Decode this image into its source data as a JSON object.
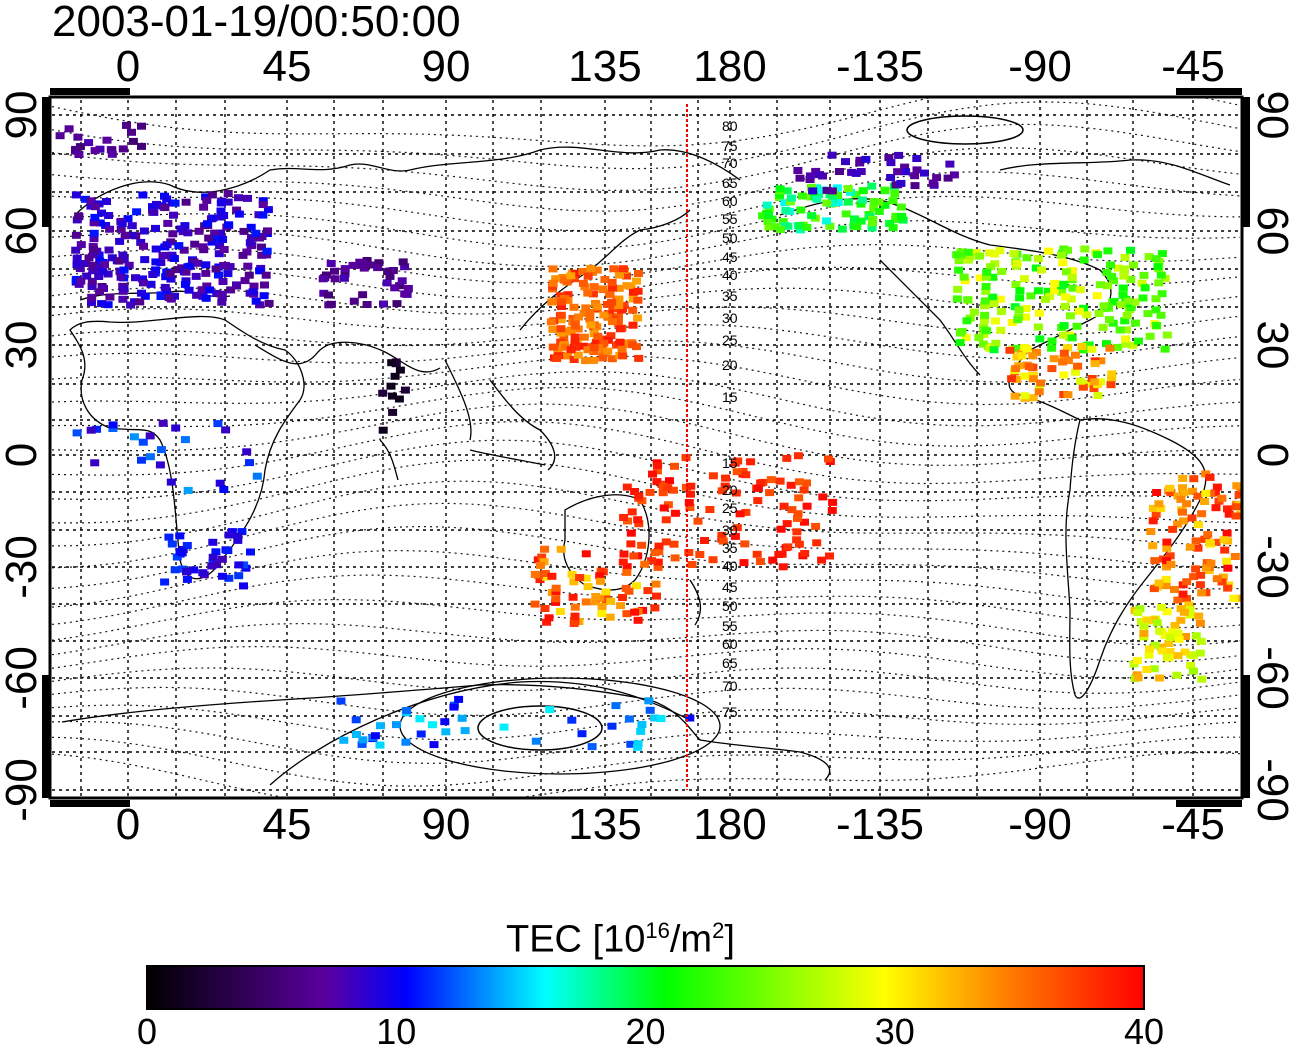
{
  "title": "2003-01-19/00:50:00",
  "map": {
    "lon_ticks": [
      "0",
      "45",
      "90",
      "135",
      "180",
      "-135",
      "-90",
      "-45"
    ],
    "lat_ticks": [
      "90",
      "60",
      "30",
      "0",
      "-30",
      "-60",
      "-90"
    ],
    "contour_labels_north": [
      "80",
      "75",
      "70",
      "65",
      "60",
      "55",
      "50",
      "45",
      "40",
      "35",
      "30",
      "25",
      "20",
      "15"
    ],
    "contour_labels_south": [
      "15",
      "20",
      "25",
      "30",
      "35",
      "40",
      "45",
      "50",
      "55",
      "60",
      "65",
      "70",
      "75"
    ],
    "colors": {
      "frame": "#000000",
      "grid": "#000000",
      "meridian_line": "#ff0000",
      "coast": "#000000"
    },
    "scale": {
      "vmin": 0,
      "vmax": 40
    }
  },
  "colorbar": {
    "label_prefix": "TEC  [10",
    "label_exp": "16",
    "label_mid": "/m",
    "label_exp2": "2",
    "label_suffix": "]",
    "ticks": [
      "0",
      "10",
      "20",
      "30",
      "40"
    ],
    "colors": [
      "#000000",
      "#5a00a0",
      "#0000ff",
      "#00ffff",
      "#00ff00",
      "#ffff00",
      "#ff8000",
      "#ff0000"
    ]
  }
}
